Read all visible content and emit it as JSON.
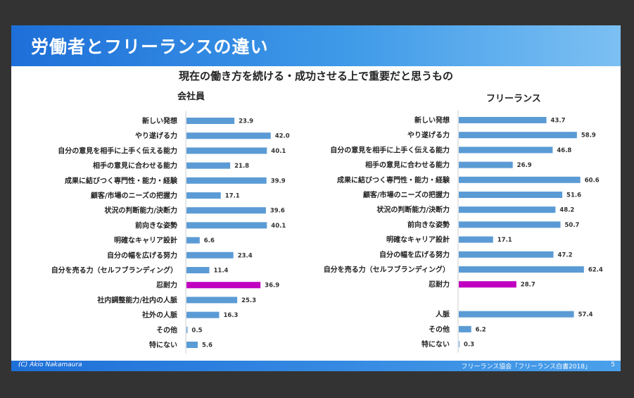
{
  "slide": {
    "title": "労働者とフリーランスの違い",
    "subtitle": "現在の働き方を続ける・成功させる上で重要だと思うもの",
    "copyright": "(C) Akio Nakamaura",
    "source": "フリーランス協会「フリーランス白書2018」",
    "page_number": "5"
  },
  "colors": {
    "bar": "#5b9bd5",
    "highlight": "#c000c0",
    "header": "#1e6fd8"
  },
  "chart_data": [
    {
      "type": "bar",
      "orientation": "horizontal",
      "title": "会社員",
      "highlight": "忍耐力",
      "categories": [
        "新しい発想",
        "やり遂げる力",
        "自分の意見を相手に上手く伝える能力",
        "相手の意見に合わせる能力",
        "成果に結びつく専門性・能力・経験",
        "顧客/市場のニーズの把握力",
        "状況の判断能力/決断力",
        "前向きな姿勢",
        "明確なキャリア設計",
        "自分の幅を広げる努力",
        "自分を売る力（セルフブランディング）",
        "忍耐力",
        "社内調整能力/社内の人脈",
        "社外の人脈",
        "その他",
        "特にない"
      ],
      "values": [
        23.9,
        42.0,
        40.1,
        21.8,
        39.9,
        17.1,
        39.6,
        40.1,
        6.6,
        23.4,
        11.4,
        36.9,
        25.3,
        16.3,
        0.5,
        5.6
      ],
      "value_labels": [
        "23.9",
        "42.0",
        "40.1",
        "21.8",
        "39.9",
        "17.1",
        "39.6",
        "40.1",
        "6.6",
        "23.4",
        "11.4",
        "36.9",
        "25.3",
        "16.3",
        "0.5",
        "5.6"
      ]
    },
    {
      "type": "bar",
      "orientation": "horizontal",
      "title": "フリーランス",
      "highlight": "忍耐力",
      "categories": [
        "新しい発想",
        "やり遂げる力",
        "自分の意見を相手に上手く伝える能力",
        "相手の意見に合わせる能力",
        "成果に結びつく専門性・能力・経験",
        "顧客/市場のニーズの把握力",
        "状況の判断能力/決断力",
        "前向きな姿勢",
        "明確なキャリア設計",
        "自分の幅を広げる努力",
        "自分を売る力（セルフブランディング）",
        "忍耐力",
        "人脈",
        "その他",
        "特にない"
      ],
      "values": [
        43.7,
        58.9,
        46.8,
        26.9,
        60.6,
        51.6,
        48.2,
        50.7,
        17.1,
        47.2,
        62.4,
        28.7,
        57.4,
        6.2,
        0.3
      ],
      "value_labels": [
        "43.7",
        "58.9",
        "46.8",
        "26.9",
        "60.6",
        "51.6",
        "48.2",
        "50.7",
        "17.1",
        "47.2",
        "62.4",
        "28.7",
        "57.4",
        "6.2",
        "0.3"
      ]
    }
  ]
}
